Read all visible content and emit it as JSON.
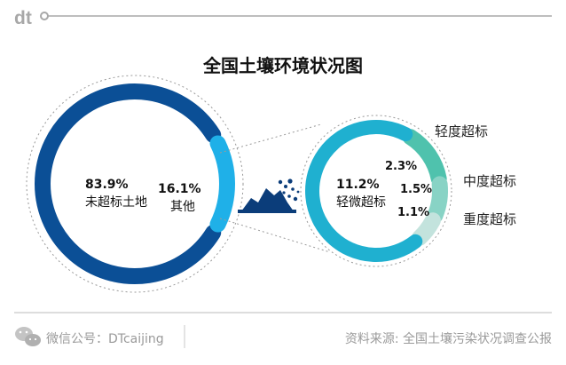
{
  "header": {
    "logo_text": "dt"
  },
  "chart_data": [
    {
      "type": "pie",
      "title": "全国土壤环境状况图",
      "categories": [
        "未超标土地",
        "其他"
      ],
      "values": [
        83.9,
        16.1
      ],
      "value_labels": [
        "83.9%",
        "16.1%"
      ],
      "colors": [
        "#0b4f96",
        "#1fb0e8"
      ]
    },
    {
      "type": "pie",
      "categories": [
        "轻微超标",
        "轻度超标",
        "中度超标",
        "重度超标"
      ],
      "values": [
        11.2,
        2.3,
        1.5,
        1.1
      ],
      "value_labels": [
        "11.2%",
        "2.3%",
        "1.5%",
        "1.1%"
      ],
      "colors": [
        "#1fb0d0",
        "#4fc2ad",
        "#88d3c5",
        "#c3e3dd"
      ]
    }
  ],
  "footer": {
    "wechat_label": "微信公号：DTcaijing",
    "source_label": "资料来源: 全国土壤污染状况调查公报"
  },
  "icons": {
    "wechat": "wechat-icon",
    "pollution": "soil-pollution-icon"
  }
}
